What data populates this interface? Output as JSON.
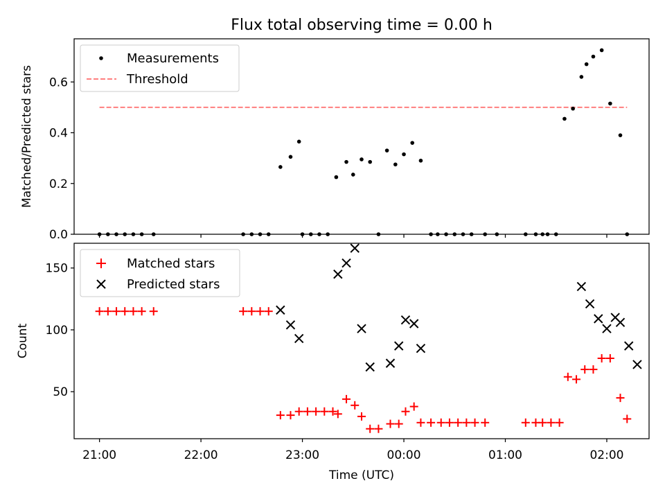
{
  "colors": {
    "measurement": "#000000",
    "threshold": "#ff7f7f",
    "matched": "#ff0000",
    "predicted": "#000000",
    "axes": "#000000",
    "background": "#ffffff"
  },
  "chart_data": [
    {
      "type": "scatter",
      "title": "Flux total observing time = 0.00 h",
      "xlabel": "",
      "ylabel": "Matched/Predicted stars",
      "ylim": [
        0,
        0.77
      ],
      "yticks": [
        0.0,
        0.2,
        0.4,
        0.6
      ],
      "ytick_labels": [
        "0.0",
        "0.2",
        "0.4",
        "0.6"
      ],
      "grid": false,
      "legend_position": "upper-left",
      "series": [
        {
          "name": "Measurements",
          "marker": "dot",
          "x": [
            "21:00",
            "21:05",
            "21:10",
            "21:15",
            "21:20",
            "21:25",
            "21:32",
            "22:25",
            "22:30",
            "22:35",
            "22:40",
            "22:47",
            "22:53",
            "22:58",
            "23:00",
            "23:05",
            "23:10",
            "23:15",
            "23:20",
            "23:26",
            "23:30",
            "23:35",
            "23:40",
            "23:45",
            "23:50",
            "23:55",
            "24:00",
            "24:05",
            "24:10",
            "24:16",
            "24:20",
            "24:25",
            "24:30",
            "24:35",
            "24:40",
            "24:48",
            "24:55",
            "25:12",
            "25:18",
            "25:22",
            "25:25",
            "25:30",
            "25:35",
            "25:40",
            "25:45",
            "25:48",
            "25:52",
            "25:57",
            "26:02",
            "26:08",
            "26:12"
          ],
          "y": [
            0,
            0,
            0,
            0,
            0,
            0,
            0,
            0,
            0,
            0,
            0,
            0.265,
            0.305,
            0.365,
            0,
            0,
            0,
            0,
            0.225,
            0.285,
            0.235,
            0.295,
            0.285,
            0,
            0.33,
            0.275,
            0.315,
            0.36,
            0.29,
            0,
            0,
            0,
            0,
            0,
            0,
            0,
            0,
            0,
            0,
            0,
            0,
            0,
            0.455,
            0.495,
            0.62,
            0.67,
            0.7,
            0.725,
            0.515,
            0.39,
            0
          ]
        },
        {
          "name": "Threshold",
          "style": "dashed",
          "x": [
            "21:00",
            "26:12"
          ],
          "y": [
            0.5,
            0.5
          ]
        }
      ]
    },
    {
      "type": "scatter",
      "title": "",
      "xlabel": "Time (UTC)",
      "ylabel": "Count",
      "ylim": [
        12,
        170
      ],
      "yticks": [
        50,
        100,
        150
      ],
      "ytick_labels": [
        "50",
        "100",
        "150"
      ],
      "xlim": [
        "20:45",
        "26:25"
      ],
      "xticks": [
        "21:00",
        "22:00",
        "23:00",
        "24:00",
        "25:00",
        "26:00"
      ],
      "xtick_labels": [
        "21:00",
        "22:00",
        "23:00",
        "00:00",
        "01:00",
        "02:00"
      ],
      "grid": false,
      "legend_position": "upper-left",
      "series": [
        {
          "name": "Matched stars",
          "marker": "plus",
          "x": [
            "21:00",
            "21:05",
            "21:10",
            "21:15",
            "21:20",
            "21:25",
            "21:32",
            "22:25",
            "22:30",
            "22:35",
            "22:40",
            "22:47",
            "22:53",
            "22:58",
            "23:03",
            "23:08",
            "23:13",
            "23:18",
            "23:21",
            "23:26",
            "23:31",
            "23:35",
            "23:40",
            "23:45",
            "23:52",
            "23:57",
            "24:01",
            "24:06",
            "24:10",
            "24:16",
            "24:22",
            "24:27",
            "24:32",
            "24:37",
            "24:42",
            "24:48",
            "25:12",
            "25:18",
            "25:22",
            "25:27",
            "25:32",
            "25:37",
            "25:42",
            "25:47",
            "25:52",
            "25:57",
            "26:02",
            "26:08",
            "26:12"
          ],
          "y": [
            115,
            115,
            115,
            115,
            115,
            115,
            115,
            115,
            115,
            115,
            115,
            31,
            31,
            34,
            34,
            34,
            34,
            34,
            32,
            44,
            39,
            30,
            20,
            20,
            24,
            24,
            34,
            38,
            25,
            25,
            25,
            25,
            25,
            25,
            25,
            25,
            25,
            25,
            25,
            25,
            25,
            62,
            60,
            68,
            68,
            77,
            77,
            45,
            28
          ]
        },
        {
          "name": "Predicted stars",
          "marker": "x",
          "x": [
            "22:47",
            "22:53",
            "22:58",
            "23:21",
            "23:26",
            "23:31",
            "23:35",
            "23:40",
            "23:52",
            "23:57",
            "24:01",
            "24:06",
            "24:10",
            "25:45",
            "25:50",
            "25:55",
            "26:00",
            "26:05",
            "26:08",
            "26:13",
            "26:18"
          ],
          "y": [
            116,
            104,
            93,
            145,
            154,
            166,
            101,
            70,
            73,
            87,
            108,
            105,
            85,
            135,
            121,
            109,
            101,
            110,
            106,
            87,
            72
          ]
        }
      ]
    }
  ]
}
